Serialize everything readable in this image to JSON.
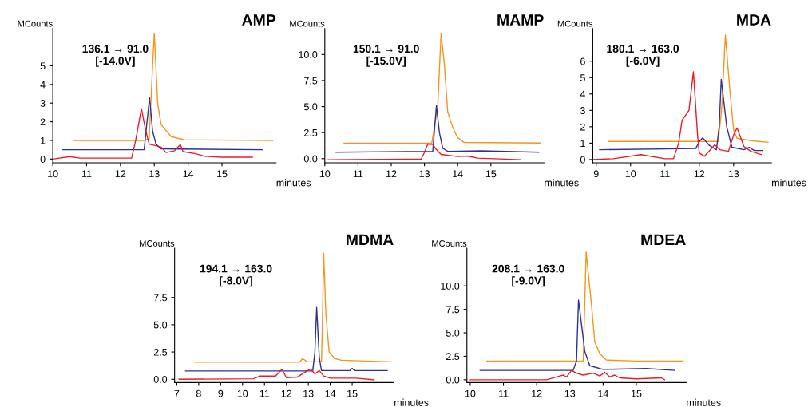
{
  "chart_data": [
    {
      "type": "line",
      "title": "AMP",
      "ylabel": "MCounts",
      "xlabel": "minutes",
      "annotations": [
        "136.1 → 91.0\n[-14.0V]"
      ],
      "xlim": [
        10,
        16.6
      ],
      "xticks": [
        10,
        11,
        12,
        13,
        14,
        15
      ],
      "ylim": [
        -0.2,
        7
      ],
      "yticks": [
        0,
        1,
        2,
        3,
        4,
        5
      ],
      "grid": false,
      "legend": false,
      "marker": "none",
      "line_style": "solid",
      "series": [
        {
          "color": "#f7941d",
          "x": [
            10.6,
            12.7,
            12.85,
            12.95,
            13.0,
            13.1,
            13.2,
            13.5,
            13.9,
            16.5
          ],
          "values": [
            1.0,
            1.0,
            1.1,
            5.0,
            6.75,
            3.0,
            1.85,
            1.2,
            1.03,
            1.0
          ]
        },
        {
          "color": "#2e3192",
          "x": [
            10.3,
            12.7,
            12.86,
            12.95,
            13.05,
            13.2,
            16.2
          ],
          "values": [
            0.5,
            0.5,
            3.3,
            1.5,
            0.8,
            0.55,
            0.5
          ]
        },
        {
          "color": "#ed1c24",
          "x": [
            10.0,
            10.5,
            10.8,
            12.33,
            12.45,
            12.62,
            12.75,
            12.85,
            13.2,
            13.35,
            13.6,
            13.77,
            13.85,
            14.2,
            14.5,
            15.0,
            15.9
          ],
          "values": [
            0.0,
            0.13,
            0.05,
            0.05,
            1.0,
            2.7,
            1.5,
            0.8,
            0.65,
            0.35,
            0.45,
            0.77,
            0.4,
            0.3,
            0.15,
            0.1,
            0.1
          ]
        }
      ]
    },
    {
      "type": "line",
      "title": "MAMP",
      "ylabel": "MCounts",
      "xlabel": "minutes",
      "annotations": [
        "150.1 → 91.0\n[-15.0V]"
      ],
      "xlim": [
        10,
        16.6
      ],
      "xticks": [
        10,
        11,
        12,
        13,
        14,
        15
      ],
      "ylim": [
        -0.4,
        12.5
      ],
      "yticks": [
        {
          "value": 0,
          "label": "0.0"
        },
        2.5,
        {
          "value": 5,
          "label": "5.0"
        },
        7.5,
        {
          "value": 10,
          "label": "10.0"
        }
      ],
      "grid": false,
      "legend": false,
      "marker": "none",
      "line_style": "solid",
      "series": [
        {
          "color": "#f7941d",
          "x": [
            10.58,
            13.22,
            13.4,
            13.5,
            13.6,
            13.7,
            13.85,
            14.0,
            14.2,
            16.48
          ],
          "values": [
            1.48,
            1.48,
            5.0,
            12.05,
            9.0,
            4.5,
            3.0,
            2.0,
            1.55,
            1.5
          ]
        },
        {
          "color": "#2e3192",
          "x": [
            10.34,
            13.25,
            13.36,
            13.45,
            13.55,
            13.7,
            14.7,
            16.44
          ],
          "values": [
            0.62,
            0.7,
            5.1,
            2.5,
            1.0,
            0.7,
            0.75,
            0.62
          ]
        },
        {
          "color": "#ed1c24",
          "x": [
            10.1,
            12.9,
            13.0,
            13.1,
            13.25,
            13.35,
            13.5,
            14.0,
            14.3,
            14.6,
            15.9
          ],
          "values": [
            -0.1,
            -0.05,
            0.6,
            1.4,
            1.35,
            0.9,
            0.4,
            0.2,
            0.25,
            0.05,
            -0.1
          ]
        }
      ]
    },
    {
      "type": "line",
      "title": "MDA",
      "ylabel": "MCounts",
      "xlabel": "minutes",
      "annotations": [
        "180.1 → 163.0\n[-6.0V]"
      ],
      "xlim": [
        8.9,
        14.1
      ],
      "xticks": [
        9,
        10,
        11,
        12,
        13
      ],
      "ylim": [
        -0.2,
        8
      ],
      "yticks": [
        0,
        1,
        2,
        3,
        4,
        5,
        6
      ],
      "grid": false,
      "legend": false,
      "marker": "none",
      "line_style": "solid",
      "series": [
        {
          "color": "#f7941d",
          "x": [
            9.35,
            12.55,
            12.65,
            12.76,
            12.9,
            13.0,
            13.1,
            13.5,
            14.0
          ],
          "values": [
            1.1,
            1.1,
            3.0,
            7.6,
            4.0,
            1.8,
            1.3,
            1.15,
            1.05
          ]
        },
        {
          "color": "#2e3192",
          "x": [
            9.1,
            11.9,
            12.0,
            12.1,
            12.3,
            12.5,
            12.58,
            12.64,
            12.8,
            12.95,
            13.3,
            13.45,
            13.6,
            13.85
          ],
          "values": [
            0.6,
            0.67,
            1.1,
            1.32,
            0.85,
            0.6,
            2.0,
            4.9,
            2.0,
            0.75,
            0.6,
            0.75,
            0.55,
            0.55
          ]
        },
        {
          "color": "#ed1c24",
          "x": [
            8.9,
            9.5,
            10.3,
            11.0,
            11.25,
            11.4,
            11.5,
            11.7,
            11.83,
            11.95,
            12.0,
            12.15,
            12.35,
            12.45,
            12.6,
            12.85,
            13.0,
            13.1,
            13.3,
            13.5,
            13.8
          ],
          "values": [
            0.0,
            0.05,
            0.3,
            0.05,
            0.05,
            1.0,
            2.4,
            3.0,
            5.36,
            1.5,
            0.4,
            0.2,
            0.65,
            0.9,
            0.6,
            0.5,
            1.5,
            1.93,
            0.8,
            0.5,
            0.3
          ]
        }
      ]
    },
    {
      "type": "line",
      "title": "MDMA",
      "ylabel": "MCounts",
      "xlabel": "minutes",
      "annotations": [
        "194.1 → 163.0\n[-8.0V]"
      ],
      "xlim": [
        6.9,
        16.9
      ],
      "xticks": [
        7,
        8,
        9,
        10,
        11,
        12,
        13,
        14,
        15
      ],
      "ylim": [
        -0.3,
        12
      ],
      "yticks": [
        {
          "value": 0,
          "label": "0.0"
        },
        2.5,
        {
          "value": 5,
          "label": "5.0"
        },
        7.5
      ],
      "grid": false,
      "legend": false,
      "marker": "none",
      "line_style": "solid",
      "series": [
        {
          "color": "#f7941d",
          "x": [
            7.84,
            12.6,
            12.74,
            12.95,
            13.6,
            13.65,
            13.7,
            13.8,
            13.95,
            14.2,
            14.5,
            16.8
          ],
          "values": [
            1.57,
            1.57,
            1.9,
            1.6,
            1.6,
            6.0,
            11.55,
            6.0,
            2.5,
            1.9,
            1.75,
            1.6
          ]
        },
        {
          "color": "#2e3192",
          "x": [
            7.4,
            13.2,
            13.3,
            13.38,
            13.5,
            13.6,
            14.9,
            15.0,
            15.1,
            16.6
          ],
          "values": [
            0.76,
            0.76,
            2.5,
            6.58,
            2.0,
            0.8,
            0.8,
            1.0,
            0.8,
            0.8
          ]
        },
        {
          "color": "#ed1c24",
          "x": [
            7.1,
            10.5,
            10.8,
            11.5,
            11.8,
            12.0,
            12.5,
            12.8,
            13.1,
            13.3,
            13.5,
            13.7,
            14.0,
            15.2,
            16.0
          ],
          "values": [
            0.0,
            0.05,
            0.3,
            0.3,
            0.92,
            0.15,
            0.2,
            0.6,
            0.95,
            0.5,
            0.8,
            0.3,
            0.1,
            0.1,
            -0.05
          ]
        }
      ]
    },
    {
      "type": "line",
      "title": "MDEA",
      "ylabel": "MCounts",
      "xlabel": "minutes",
      "annotations": [
        "208.1 → 163.0\n[-9.0V]"
      ],
      "xlim": [
        9.9,
        16.5
      ],
      "xticks": [
        10,
        11,
        12,
        13,
        14,
        15
      ],
      "ylim": [
        -0.3,
        14
      ],
      "yticks": [
        {
          "value": 0,
          "label": "0.0"
        },
        2.5,
        {
          "value": 5,
          "label": "5.0"
        },
        7.5,
        {
          "value": 10,
          "label": "10.0"
        }
      ],
      "grid": false,
      "legend": false,
      "marker": "none",
      "line_style": "solid",
      "series": [
        {
          "color": "#f7941d",
          "x": [
            10.5,
            13.4,
            13.49,
            13.65,
            13.75,
            13.9,
            14.1,
            15.0,
            16.38
          ],
          "values": [
            2.0,
            2.0,
            13.6,
            8.0,
            4.0,
            2.8,
            2.1,
            2.0,
            2.0
          ]
        },
        {
          "color": "#2e3192",
          "x": [
            10.3,
            13.1,
            13.2,
            13.26,
            13.45,
            13.6,
            14.0,
            15.3,
            16.16
          ],
          "values": [
            1.0,
            1.0,
            2.0,
            8.5,
            3.0,
            1.5,
            1.1,
            1.2,
            1.0
          ]
        },
        {
          "color": "#ed1c24",
          "x": [
            10.0,
            12.3,
            12.7,
            12.8,
            12.9,
            13.05,
            13.2,
            13.4,
            13.7,
            13.9,
            14.05,
            14.2,
            14.35,
            14.5,
            15.0,
            15.75,
            15.85
          ],
          "values": [
            0.0,
            0.0,
            0.4,
            0.5,
            0.3,
            1.0,
            0.7,
            0.5,
            0.7,
            0.4,
            0.8,
            0.3,
            0.5,
            0.2,
            0.1,
            0.2,
            0.0
          ]
        }
      ]
    }
  ]
}
